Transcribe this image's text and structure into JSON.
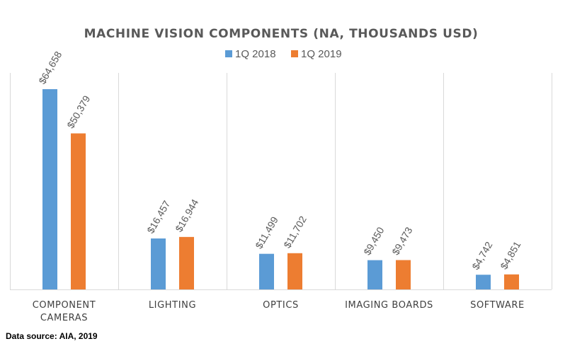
{
  "chart_data": {
    "type": "bar",
    "title": "MACHINE VISION COMPONENTS (NA, THOUSANDS USD)",
    "categories": [
      "COMPONENT CAMERAS",
      "LIGHTING",
      "OPTICS",
      "IMAGING BOARDS",
      "SOFTWARE"
    ],
    "category_lines": [
      [
        "COMPONENT",
        "CAMERAS"
      ],
      [
        "LIGHTING"
      ],
      [
        "OPTICS"
      ],
      [
        "IMAGING BOARDS"
      ],
      [
        "SOFTWARE"
      ]
    ],
    "series": [
      {
        "name": "1Q 2018",
        "color": "#5B9BD5",
        "values": [
          64658,
          16457,
          11499,
          9450,
          4742
        ],
        "labels": [
          "$64,658",
          "$16,457",
          "$11,499",
          "$9,450",
          "$4,742"
        ]
      },
      {
        "name": "1Q 2019",
        "color": "#ED7D31",
        "values": [
          50379,
          16944,
          11702,
          9473,
          4851
        ],
        "labels": [
          "$50,379",
          "$16,944",
          "$11,702",
          "$9,473",
          "$4,851"
        ]
      }
    ],
    "ylim": [
      0,
      70000
    ],
    "grid": "vertical category separators",
    "legend": "top-center"
  },
  "source_note": "Data source: AIA, 2019"
}
